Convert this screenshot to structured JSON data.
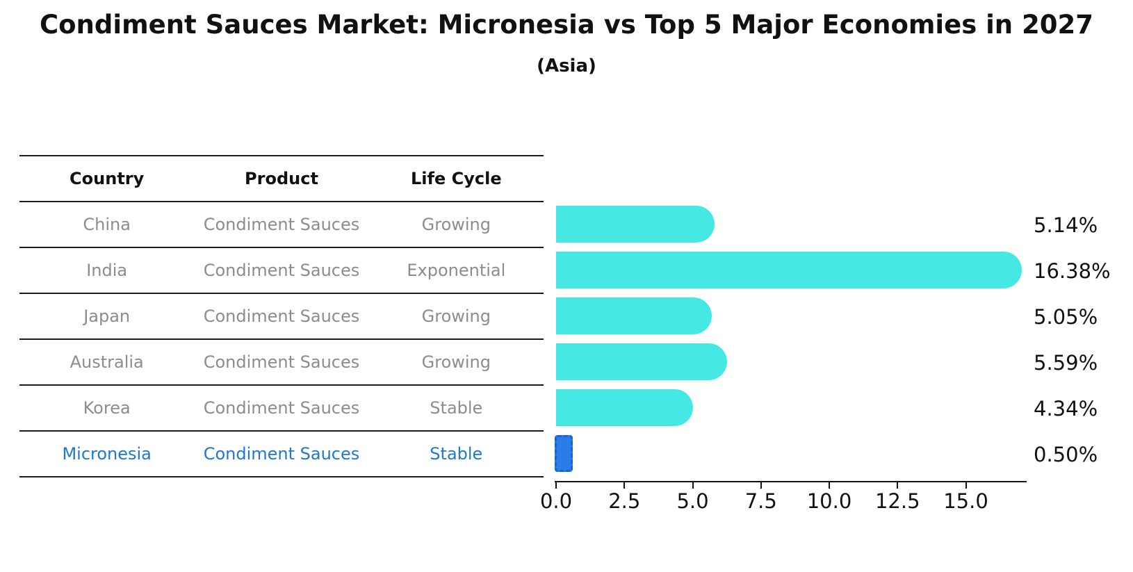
{
  "title": "Condiment Sauces Market: Micronesia vs Top 5 Major Economies in 2027",
  "subtitle": "(Asia)",
  "colors": {
    "bar_default": "#45e8e2",
    "bar_highlight": "#2b7ce9",
    "bar_highlight_border": "#1a63cc",
    "row_text": "#8c8c8c",
    "highlight_text": "#1e78d2",
    "header_text": "#111111",
    "axis_text": "#111111"
  },
  "table": {
    "headers": [
      "Country",
      "Product",
      "Life Cycle"
    ],
    "rows": [
      {
        "country": "China",
        "product": "Condiment Sauces",
        "life_cycle": "Growing",
        "highlighted": false
      },
      {
        "country": "India",
        "product": "Condiment Sauces",
        "life_cycle": "Exponential",
        "highlighted": false
      },
      {
        "country": "Japan",
        "product": "Condiment Sauces",
        "life_cycle": "Growing",
        "highlighted": false
      },
      {
        "country": "Australia",
        "product": "Condiment Sauces",
        "life_cycle": "Growing",
        "highlighted": false
      },
      {
        "country": "Korea",
        "product": "Condiment Sauces",
        "life_cycle": "Stable",
        "highlighted": false
      },
      {
        "country": "Micronesia",
        "product": "Condiment Sauces",
        "life_cycle": "Stable",
        "highlighted": true
      }
    ]
  },
  "chart_data": {
    "type": "bar",
    "orientation": "horizontal",
    "title": "Condiment Sauces Market: Micronesia vs Top 5 Major Economies in 2027",
    "subtitle": "(Asia)",
    "categories": [
      "China",
      "India",
      "Japan",
      "Australia",
      "Korea",
      "Micronesia"
    ],
    "values": [
      5.14,
      16.38,
      5.05,
      5.59,
      4.34,
      0.5
    ],
    "value_labels": [
      "5.14%",
      "16.38%",
      "5.05%",
      "5.59%",
      "4.34%",
      "0.50%"
    ],
    "highlight_index": 5,
    "xlim": [
      0.0,
      17.2
    ],
    "xticks": [
      0.0,
      2.5,
      5.0,
      7.5,
      10.0,
      12.5,
      15.0
    ],
    "xtick_labels": [
      "0.0",
      "2.5",
      "5.0",
      "7.5",
      "10.0",
      "12.5",
      "15.0"
    ],
    "grid": false,
    "legend": false
  }
}
